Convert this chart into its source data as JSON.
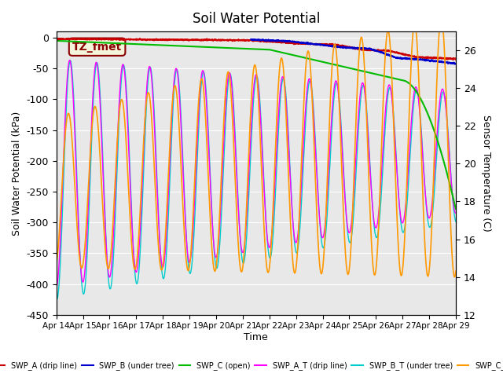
{
  "title": "Soil Water Potential",
  "ylabel_left": "Soil Water Potential (kPa)",
  "ylabel_right": "Sensor Temperature (C)",
  "xlabel": "Time",
  "ylim_left": [
    -450,
    10
  ],
  "ylim_right": [
    12,
    27
  ],
  "yticks_left": [
    0,
    -50,
    -100,
    -150,
    -200,
    -250,
    -300,
    -350,
    -400,
    -450
  ],
  "yticks_right": [
    12,
    14,
    16,
    18,
    20,
    22,
    24,
    26
  ],
  "xtick_labels": [
    "Apr 14",
    "Apr 15",
    "Apr 16",
    "Apr 17",
    "Apr 18",
    "Apr 19",
    "Apr 20",
    "Apr 21",
    "Apr 22",
    "Apr 23",
    "Apr 24",
    "Apr 25",
    "Apr 26",
    "Apr 27",
    "Apr 28",
    "Apr 29"
  ],
  "background_color": "#ffffff",
  "plot_bg_color": "#e8e8e8",
  "annotation_box": "TZ_fmet",
  "annotation_color": "#8B0000",
  "annotation_bg": "#f5f5dc",
  "colors": {
    "SWP_A": "#cc0000",
    "SWP_B": "#0000cc",
    "SWP_C": "#00bb00",
    "SWP_AT": "#ff00ff",
    "SWP_BT": "#00cccc",
    "SWP_CT": "#ff9900"
  }
}
